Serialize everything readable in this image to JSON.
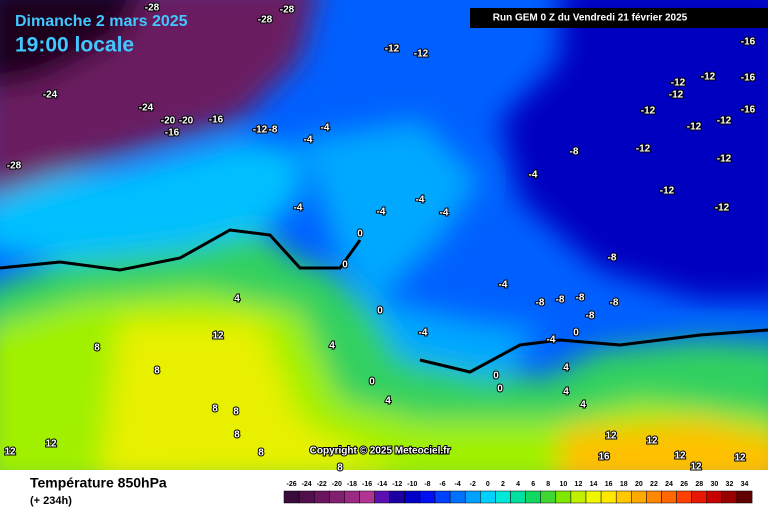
{
  "header": {
    "date": "Dimanche 2 mars 2025",
    "time": "19:00 locale",
    "run": "Run GEM 0 Z du Vendredi 21 février 2025"
  },
  "copyright": "Copyright © 2025 Meteociel.fr",
  "footer": {
    "title": "Température 850hPa",
    "lead": "(+ 234h)"
  },
  "color_scale": {
    "labels": [
      -26,
      -24,
      -22,
      -20,
      -18,
      -16,
      -14,
      -12,
      -10,
      -8,
      -6,
      -4,
      -2,
      0,
      2,
      4,
      6,
      8,
      10,
      12,
      14,
      16,
      18,
      20,
      22,
      24,
      26,
      28,
      30,
      32,
      34
    ],
    "colors": [
      "#3a0a3a",
      "#520f4c",
      "#6a165e",
      "#822070",
      "#9a2a82",
      "#b03494",
      "#5a10b0",
      "#1a00a0",
      "#0000c8",
      "#0010f0",
      "#0040ff",
      "#0070ff",
      "#00a0ff",
      "#00d0ff",
      "#00e8d8",
      "#00e0a0",
      "#10d860",
      "#40d830",
      "#80e800",
      "#c0f000",
      "#f0f800",
      "#ffe800",
      "#ffc800",
      "#ffa800",
      "#ff8800",
      "#ff6800",
      "#ff4000",
      "#e81800",
      "#c80000",
      "#980000",
      "#600000"
    ]
  },
  "map_labels": [
    "-28",
    "-28",
    "-28",
    "-12",
    "-12",
    "-16",
    "-24",
    "-24",
    "-20",
    "-20",
    "-16",
    "-16",
    "-12",
    "-8",
    "-4",
    "-4",
    "-28",
    "-12",
    "-12",
    "-16",
    "-12",
    "-12",
    "-16",
    "-12",
    "-12",
    "-12",
    "-12",
    "-8",
    "-4",
    "-12",
    "-12",
    "-4",
    "-4",
    "-4",
    "-4",
    "0",
    "0",
    "-8",
    "-4",
    "-8",
    "-8",
    "-8",
    "-8",
    "4",
    "0",
    "-8",
    "-4",
    "12",
    "-4",
    "0",
    "8",
    "4",
    "8",
    "0",
    "0",
    "0",
    "4",
    "4",
    "4",
    "4",
    "8",
    "8",
    "8",
    "12",
    "12",
    "12",
    "12",
    "16",
    "12",
    "12",
    "12",
    "8",
    "8"
  ]
}
